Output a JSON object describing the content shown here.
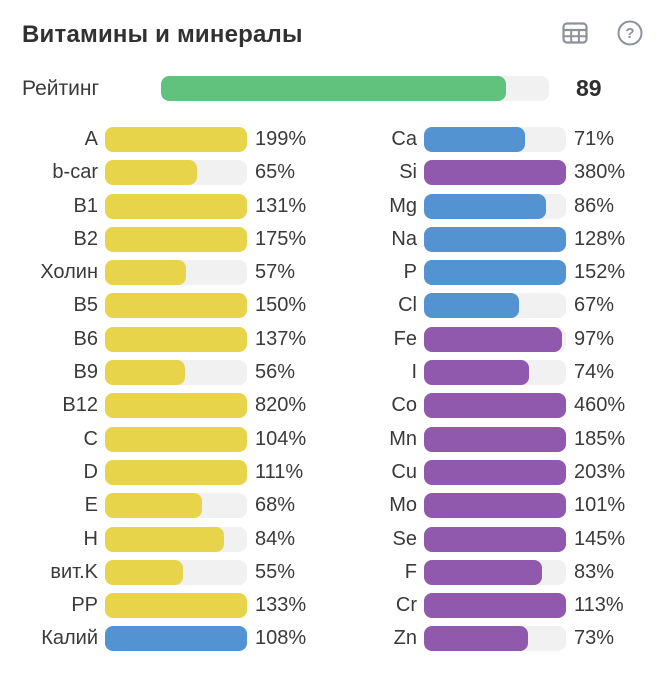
{
  "header": {
    "title": "Витамины и минералы",
    "icons": [
      {
        "name": "table-view-icon"
      },
      {
        "name": "help-icon",
        "glyph": "?"
      }
    ]
  },
  "rating": {
    "label": "Рейтинг",
    "value": 89,
    "display": "89",
    "max": 100
  },
  "colors": {
    "yellow": "#e8d44b",
    "blue": "#5493d1",
    "purple": "#9059ae",
    "green": "#60c27c",
    "track": "#f1f1f2",
    "icon": "#8d929a"
  },
  "chart_data": {
    "type": "bar",
    "orientation": "horizontal",
    "title": "Витамины и минералы",
    "unit": "%",
    "bar_scale_max": 100,
    "note": "fill width = min(value,100)% of track",
    "rating": {
      "label": "Рейтинг",
      "value": 89
    },
    "columns": [
      {
        "side": "left",
        "name": "vitamins",
        "rows": [
          {
            "label": "A",
            "value": 199,
            "display": "199%",
            "color": "yellow"
          },
          {
            "label": "b-car",
            "value": 65,
            "display": "65%",
            "color": "yellow"
          },
          {
            "label": "B1",
            "value": 131,
            "display": "131%",
            "color": "yellow"
          },
          {
            "label": "B2",
            "value": 175,
            "display": "175%",
            "color": "yellow"
          },
          {
            "label": "Холин",
            "value": 57,
            "display": "57%",
            "color": "yellow"
          },
          {
            "label": "B5",
            "value": 150,
            "display": "150%",
            "color": "yellow"
          },
          {
            "label": "B6",
            "value": 137,
            "display": "137%",
            "color": "yellow"
          },
          {
            "label": "B9",
            "value": 56,
            "display": "56%",
            "color": "yellow"
          },
          {
            "label": "B12",
            "value": 820,
            "display": "820%",
            "color": "yellow"
          },
          {
            "label": "C",
            "value": 104,
            "display": "104%",
            "color": "yellow"
          },
          {
            "label": "D",
            "value": 111,
            "display": "111%",
            "color": "yellow"
          },
          {
            "label": "E",
            "value": 68,
            "display": "68%",
            "color": "yellow"
          },
          {
            "label": "H",
            "value": 84,
            "display": "84%",
            "color": "yellow"
          },
          {
            "label": "вит.K",
            "value": 55,
            "display": "55%",
            "color": "yellow"
          },
          {
            "label": "PP",
            "value": 133,
            "display": "133%",
            "color": "yellow"
          },
          {
            "label": "Калий",
            "value": 108,
            "display": "108%",
            "color": "blue"
          }
        ]
      },
      {
        "side": "right",
        "name": "minerals",
        "rows": [
          {
            "label": "Ca",
            "value": 71,
            "display": "71%",
            "color": "blue"
          },
          {
            "label": "Si",
            "value": 380,
            "display": "380%",
            "color": "purple"
          },
          {
            "label": "Mg",
            "value": 86,
            "display": "86%",
            "color": "blue"
          },
          {
            "label": "Na",
            "value": 128,
            "display": "128%",
            "color": "blue"
          },
          {
            "label": "P",
            "value": 152,
            "display": "152%",
            "color": "blue"
          },
          {
            "label": "Cl",
            "value": 67,
            "display": "67%",
            "color": "blue"
          },
          {
            "label": "Fe",
            "value": 97,
            "display": "97%",
            "color": "purple"
          },
          {
            "label": "I",
            "value": 74,
            "display": "74%",
            "color": "purple"
          },
          {
            "label": "Co",
            "value": 460,
            "display": "460%",
            "color": "purple"
          },
          {
            "label": "Mn",
            "value": 185,
            "display": "185%",
            "color": "purple"
          },
          {
            "label": "Cu",
            "value": 203,
            "display": "203%",
            "color": "purple"
          },
          {
            "label": "Mo",
            "value": 101,
            "display": "101%",
            "color": "purple"
          },
          {
            "label": "Se",
            "value": 145,
            "display": "145%",
            "color": "purple"
          },
          {
            "label": "F",
            "value": 83,
            "display": "83%",
            "color": "purple"
          },
          {
            "label": "Cr",
            "value": 113,
            "display": "113%",
            "color": "purple"
          },
          {
            "label": "Zn",
            "value": 73,
            "display": "73%",
            "color": "purple"
          }
        ]
      }
    ]
  }
}
